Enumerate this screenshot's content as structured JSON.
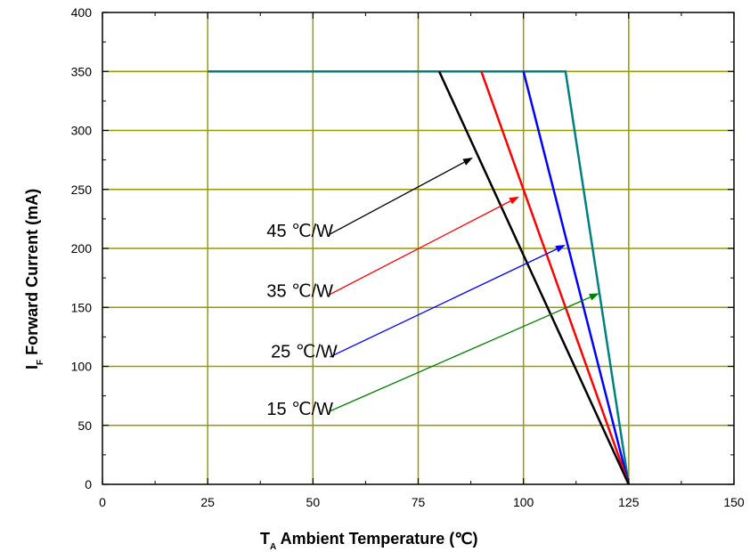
{
  "chart_data": {
    "type": "line",
    "xlabel": {
      "main": "T",
      "sub": "A",
      "rest": " Ambient Temperature (℃)"
    },
    "ylabel": {
      "main": "I",
      "sub": "F",
      "rest": " Forward Current (mA)"
    },
    "xlim": [
      0,
      150
    ],
    "ylim": [
      0,
      400
    ],
    "x_ticks": [
      0,
      25,
      50,
      75,
      100,
      125,
      150
    ],
    "y_ticks": [
      0,
      50,
      100,
      150,
      200,
      250,
      300,
      350,
      400
    ],
    "x_tick_labels": [
      "0",
      "25",
      "50",
      "75",
      "100",
      "125",
      "150"
    ],
    "y_tick_labels": [
      "0",
      "50",
      "100",
      "150",
      "200",
      "250",
      "300",
      "350",
      "400"
    ],
    "grid": true,
    "grid_color": "#999900",
    "series": [
      {
        "color": "#008080",
        "points": [
          [
            25,
            350
          ],
          [
            110,
            350
          ],
          [
            125,
            0
          ]
        ]
      },
      {
        "color": "#0000ff",
        "points": [
          [
            100,
            350
          ],
          [
            125,
            0
          ]
        ]
      },
      {
        "color": "#ff0000",
        "points": [
          [
            90,
            350
          ],
          [
            125,
            0
          ]
        ]
      },
      {
        "color": "#000000",
        "points": [
          [
            80,
            350
          ],
          [
            125,
            0
          ]
        ]
      }
    ],
    "annotations": [
      {
        "label": "45 ℃/W",
        "label_pos": [
          39,
          215
        ],
        "from": [
          54,
          212
        ],
        "to": [
          88,
          277
        ],
        "color": "#000000"
      },
      {
        "label": "35 ℃/W",
        "label_pos": [
          39,
          164
        ],
        "from": [
          54,
          161
        ],
        "to": [
          99,
          244
        ],
        "color": "#ff0000"
      },
      {
        "label": "25 ℃/W",
        "label_pos": [
          40,
          113
        ],
        "from": [
          54,
          108
        ],
        "to": [
          110,
          203
        ],
        "color": "#0000ff"
      },
      {
        "label": "15 ℃/W",
        "label_pos": [
          39,
          64
        ],
        "from": [
          54,
          62
        ],
        "to": [
          118,
          162
        ],
        "color": "#008000"
      }
    ]
  }
}
